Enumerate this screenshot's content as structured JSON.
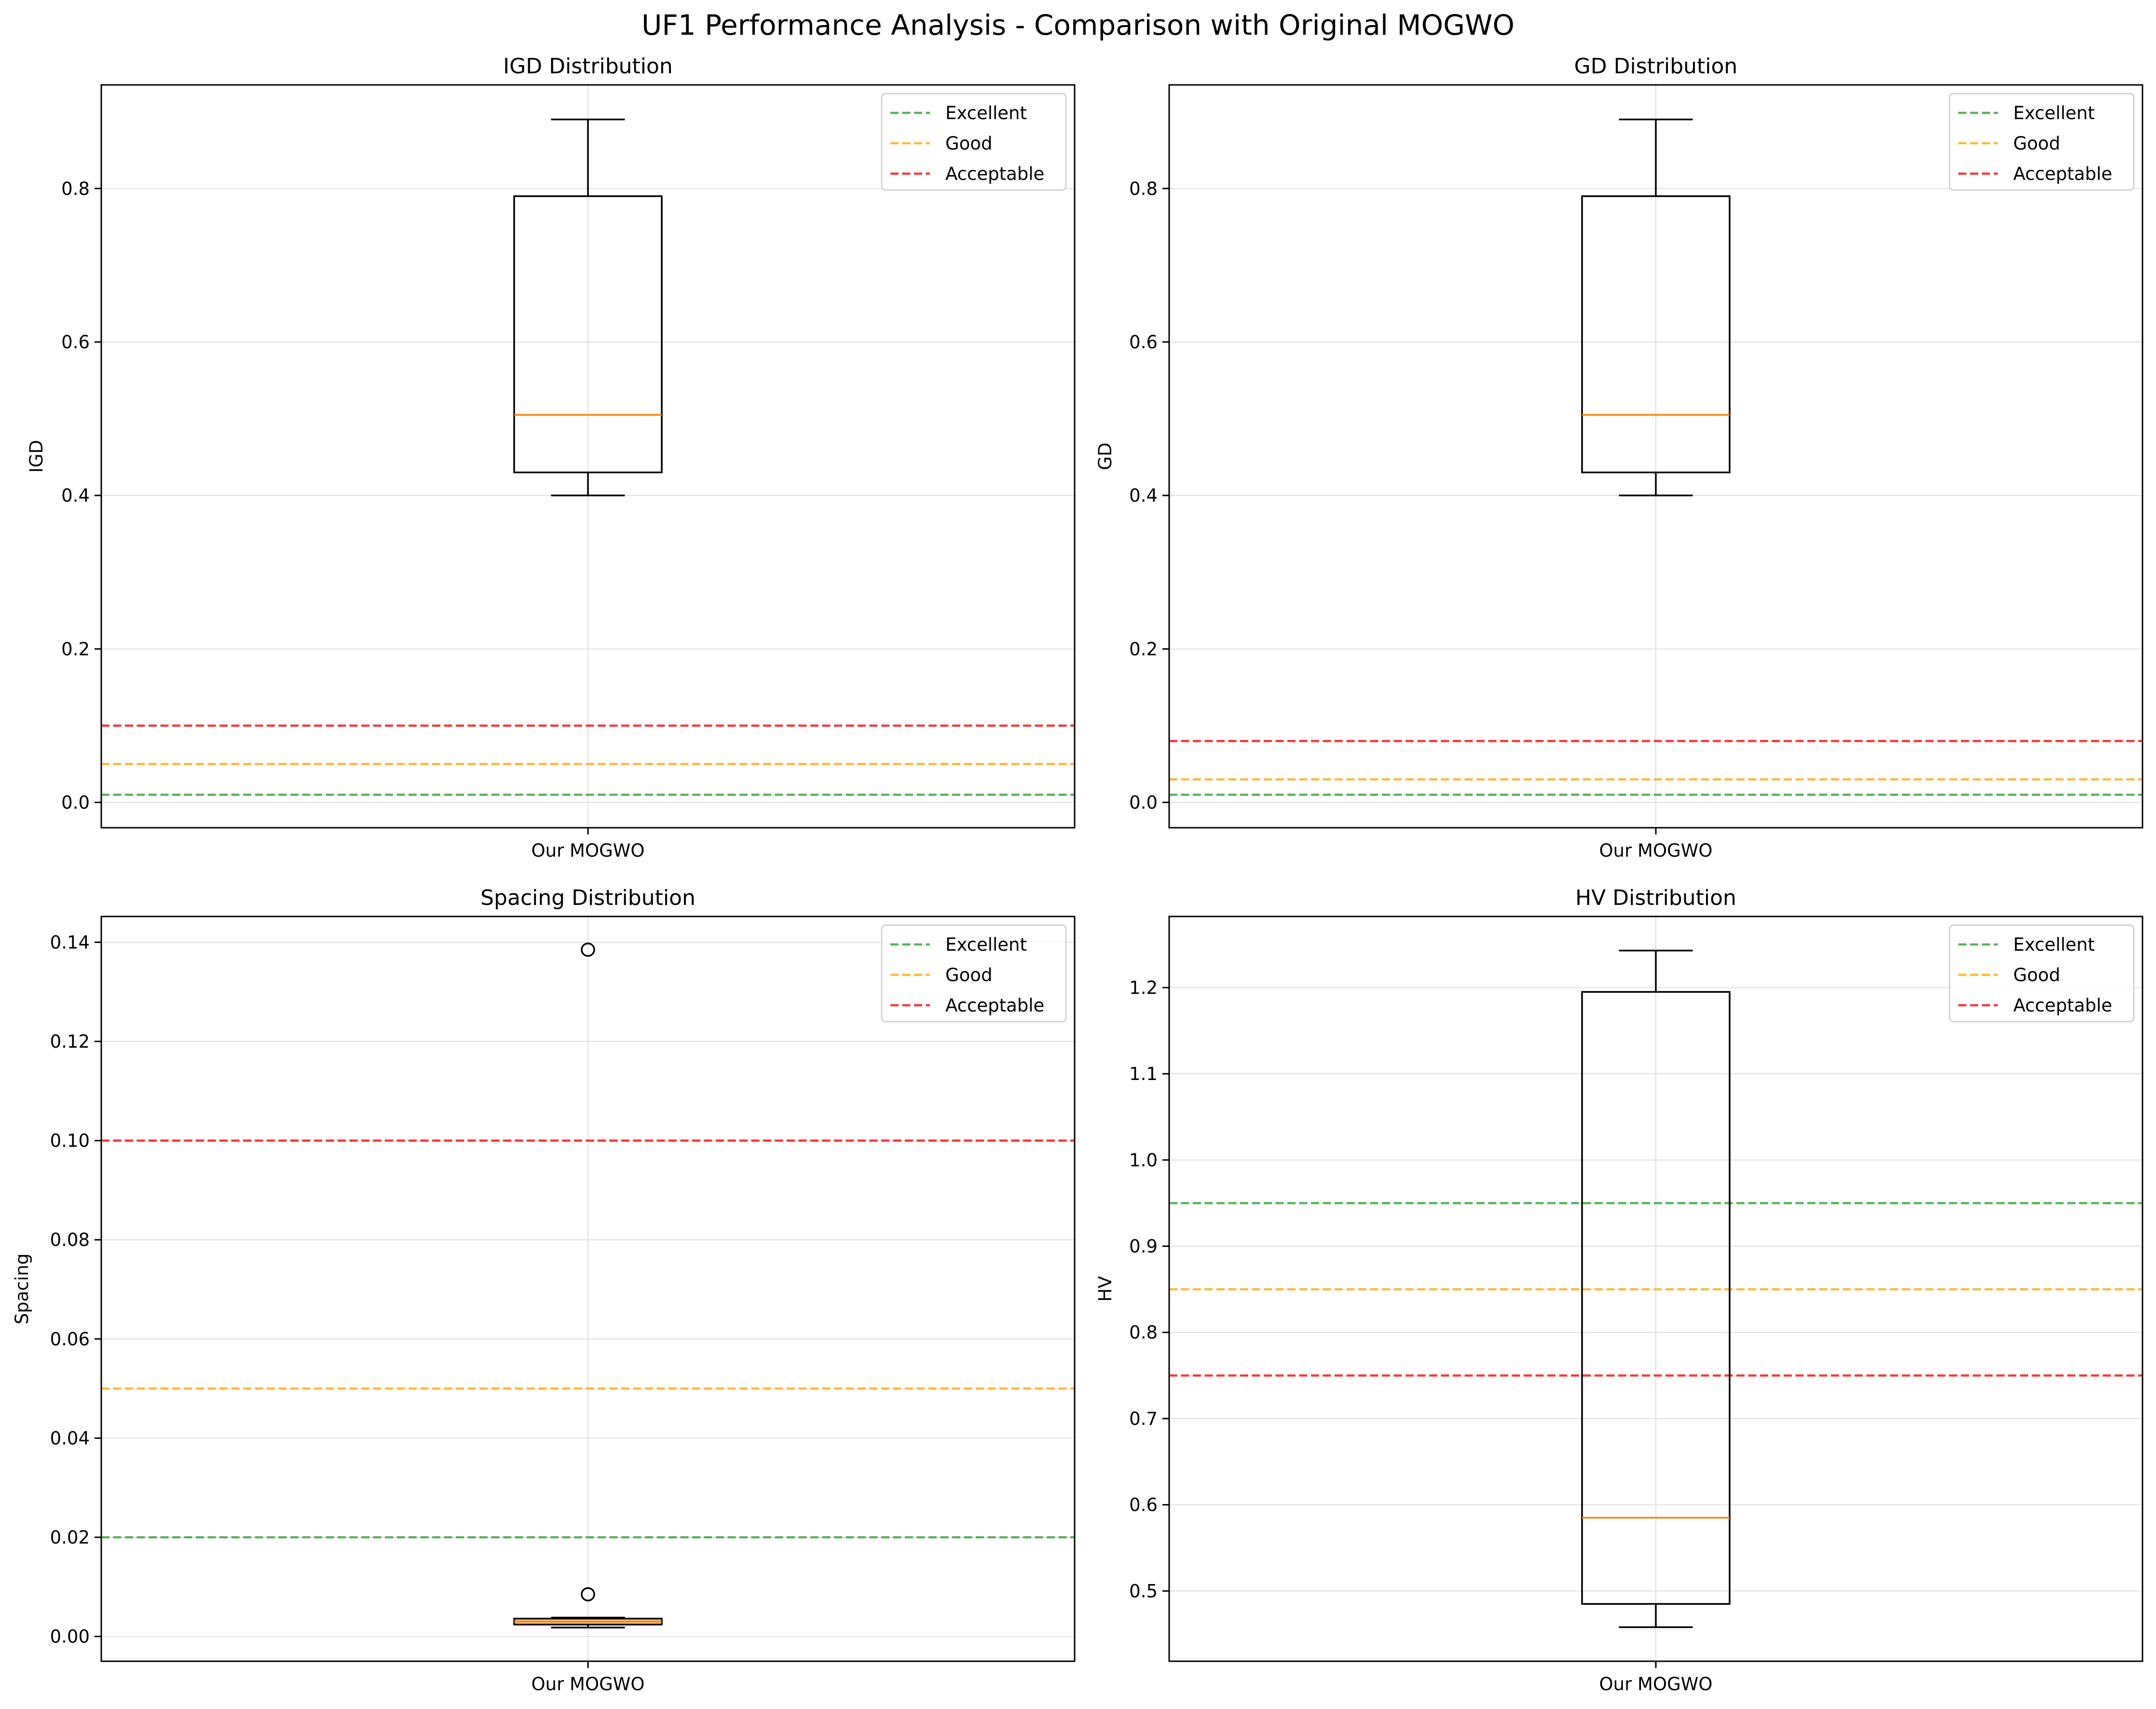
{
  "figure": {
    "title": "UF1 Performance Analysis - Comparison with Original MOGWO"
  },
  "colors": {
    "excellent": "#2ca02c",
    "good": "#ffa500",
    "acceptable": "#ff0000",
    "median": "#ff7f0e",
    "box": "#000000",
    "grid": "#e0e0e0"
  },
  "chart_data": [
    {
      "type": "box",
      "title": "IGD Distribution",
      "ylabel": "IGD",
      "xlabel": "",
      "categories": [
        "Our MOGWO"
      ],
      "box": {
        "whisker_low": 0.4,
        "q1": 0.43,
        "median": 0.505,
        "q3": 0.79,
        "whisker_high": 0.89,
        "fill": "none"
      },
      "outliers": [],
      "ylim": [
        -0.033,
        0.935
      ],
      "yticks": [
        0.0,
        0.2,
        0.4,
        0.6,
        0.8
      ],
      "ytick_labels": [
        "0.0",
        "0.2",
        "0.4",
        "0.6",
        "0.8"
      ],
      "thresholds": [
        {
          "name": "Excellent",
          "value": 0.01,
          "color": "excellent"
        },
        {
          "name": "Good",
          "value": 0.05,
          "color": "good"
        },
        {
          "name": "Acceptable",
          "value": 0.1,
          "color": "acceptable"
        }
      ],
      "grid": true,
      "legend_position": "top-right"
    },
    {
      "type": "box",
      "title": "GD Distribution",
      "ylabel": "GD",
      "xlabel": "",
      "categories": [
        "Our MOGWO"
      ],
      "box": {
        "whisker_low": 0.4,
        "q1": 0.43,
        "median": 0.505,
        "q3": 0.79,
        "whisker_high": 0.89,
        "fill": "none"
      },
      "outliers": [],
      "ylim": [
        -0.033,
        0.935
      ],
      "yticks": [
        0.0,
        0.2,
        0.4,
        0.6,
        0.8
      ],
      "ytick_labels": [
        "0.0",
        "0.2",
        "0.4",
        "0.6",
        "0.8"
      ],
      "thresholds": [
        {
          "name": "Excellent",
          "value": 0.01,
          "color": "excellent"
        },
        {
          "name": "Good",
          "value": 0.03,
          "color": "good"
        },
        {
          "name": "Acceptable",
          "value": 0.08,
          "color": "acceptable"
        }
      ],
      "grid": true,
      "legend_position": "top-right"
    },
    {
      "type": "box",
      "title": "Spacing Distribution",
      "ylabel": "Spacing",
      "xlabel": "",
      "categories": [
        "Our MOGWO"
      ],
      "box": {
        "whisker_low": 0.0018,
        "q1": 0.0024,
        "median": 0.003,
        "q3": 0.0036,
        "whisker_high": 0.0038,
        "fill": "#f5c78f"
      },
      "outliers": [
        0.0085,
        0.1385
      ],
      "ylim": [
        -0.005,
        0.1452
      ],
      "yticks": [
        0.0,
        0.02,
        0.04,
        0.06,
        0.08,
        0.1,
        0.12,
        0.14
      ],
      "ytick_labels": [
        "0.00",
        "0.02",
        "0.04",
        "0.06",
        "0.08",
        "0.10",
        "0.12",
        "0.14"
      ],
      "thresholds": [
        {
          "name": "Excellent",
          "value": 0.02,
          "color": "excellent"
        },
        {
          "name": "Good",
          "value": 0.05,
          "color": "good"
        },
        {
          "name": "Acceptable",
          "value": 0.1,
          "color": "acceptable"
        }
      ],
      "grid": true,
      "legend_position": "top-right"
    },
    {
      "type": "box",
      "title": "HV Distribution",
      "ylabel": "HV",
      "xlabel": "",
      "categories": [
        "Our MOGWO"
      ],
      "box": {
        "whisker_low": 0.458,
        "q1": 0.485,
        "median": 0.585,
        "q3": 1.195,
        "whisker_high": 1.243,
        "fill": "none"
      },
      "outliers": [],
      "ylim": [
        0.4185,
        1.2825
      ],
      "yticks": [
        0.5,
        0.6,
        0.7,
        0.8,
        0.9,
        1.0,
        1.1,
        1.2
      ],
      "ytick_labels": [
        "0.5",
        "0.6",
        "0.7",
        "0.8",
        "0.9",
        "1.0",
        "1.1",
        "1.2"
      ],
      "thresholds": [
        {
          "name": "Excellent",
          "value": 0.95,
          "color": "excellent"
        },
        {
          "name": "Good",
          "value": 0.85,
          "color": "good"
        },
        {
          "name": "Acceptable",
          "value": 0.75,
          "color": "acceptable"
        }
      ],
      "grid": true,
      "legend_position": "top-right"
    }
  ]
}
